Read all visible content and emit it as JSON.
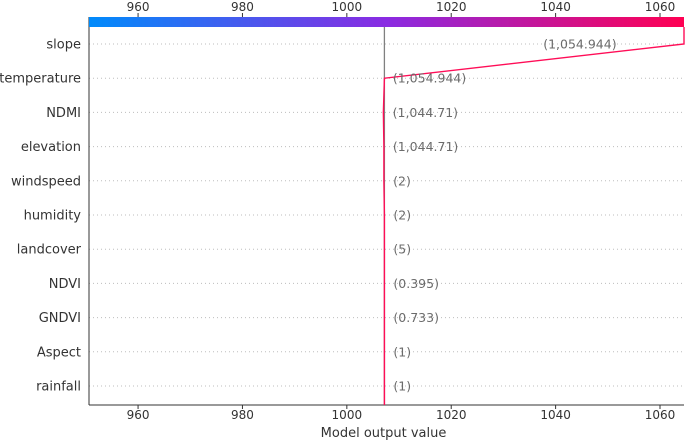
{
  "chart_data": {
    "type": "line",
    "title": "",
    "xlabel": "Model output value",
    "ylabel": "",
    "xlim": [
      950.6,
      1064.6
    ],
    "x_ticks": [
      960,
      980,
      1000,
      1020,
      1040,
      1060
    ],
    "base_value": 1007.2,
    "grid": "dotted horizontal lines",
    "colorbar": {
      "position": "top",
      "stops": [
        "#008bfb",
        "#8a2be2",
        "#ff0052"
      ]
    },
    "line_color": "#ff0d57",
    "base_line_color": "#808080",
    "features": [
      {
        "name": "slope",
        "value_label": "(1,054.944)",
        "output": 1064.6
      },
      {
        "name": "temperature",
        "value_label": "(1,054.944)",
        "output": 1007.2
      },
      {
        "name": "NDMI",
        "value_label": "(1,044.71)",
        "output": 1007.0
      },
      {
        "name": "elevation",
        "value_label": "(1,044.71)",
        "output": 1007.1
      },
      {
        "name": "windspeed",
        "value_label": "(2)",
        "output": 1007.1
      },
      {
        "name": "humidity",
        "value_label": "(2)",
        "output": 1007.2
      },
      {
        "name": "landcover",
        "value_label": "(5)",
        "output": 1007.2
      },
      {
        "name": "NDVI",
        "value_label": "(0.395)",
        "output": 1007.2
      },
      {
        "name": "GNDVI",
        "value_label": "(0.733)",
        "output": 1007.2
      },
      {
        "name": "Aspect",
        "value_label": "(1)",
        "output": 1007.2
      },
      {
        "name": "rainfall",
        "value_label": "(1)",
        "output": 1007.2
      }
    ]
  }
}
